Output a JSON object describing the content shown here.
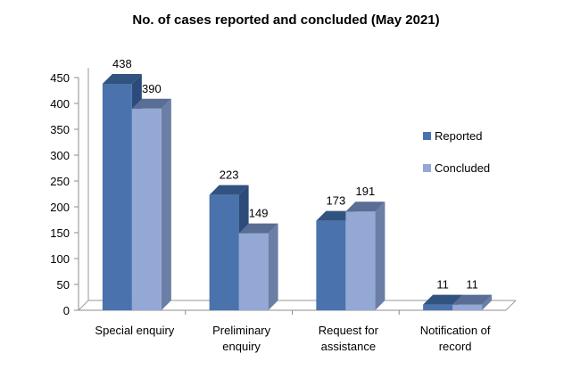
{
  "chart_data": {
    "type": "bar",
    "title": "No. of cases reported and concluded (May 2021)",
    "categories": [
      [
        "Special enquiry"
      ],
      [
        "Preliminary",
        "enquiry"
      ],
      [
        "Request for",
        "assistance"
      ],
      [
        "Notification of",
        "record"
      ]
    ],
    "series": [
      {
        "name": "Reported",
        "values": [
          438,
          223,
          173,
          11
        ],
        "color": "#4a73ae",
        "side": "#2d4b7a",
        "top": "#31537f"
      },
      {
        "name": "Concluded",
        "values": [
          390,
          149,
          191,
          11
        ],
        "color": "#93a8d4",
        "side": "#6b7ea6",
        "top": "#5a6d94"
      }
    ],
    "yticks": [
      0,
      50,
      100,
      150,
      200,
      250,
      300,
      350,
      400,
      450
    ],
    "ylim": [
      0,
      450
    ],
    "legend_position": "right",
    "gridlines": false,
    "style": "3d-clustered-column"
  }
}
